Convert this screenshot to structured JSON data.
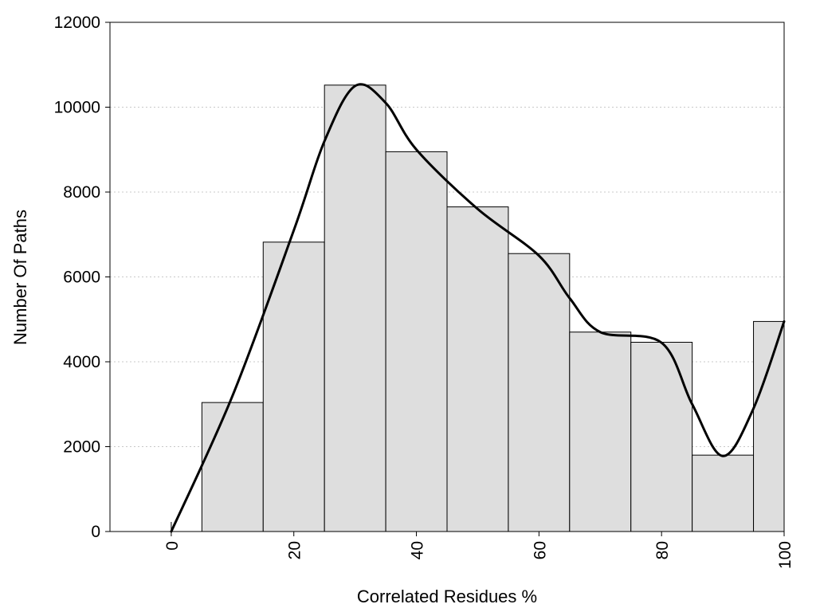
{
  "chart_data": {
    "type": "bar",
    "title": "",
    "xlabel": "Correlated Residues %",
    "ylabel": "Number Of Paths",
    "xlim": [
      -10,
      100
    ],
    "ylim": [
      0,
      12000
    ],
    "x_ticks": [
      0,
      20,
      40,
      60,
      80,
      100
    ],
    "y_ticks": [
      0,
      2000,
      4000,
      6000,
      8000,
      10000,
      12000
    ],
    "grid": "horizontal dotted",
    "bars": [
      {
        "x0": 5,
        "x1": 15,
        "value": 3040
      },
      {
        "x0": 15,
        "x1": 25,
        "value": 6820
      },
      {
        "x0": 25,
        "x1": 35,
        "value": 10520
      },
      {
        "x0": 35,
        "x1": 45,
        "value": 8950
      },
      {
        "x0": 45,
        "x1": 55,
        "value": 7650
      },
      {
        "x0": 55,
        "x1": 65,
        "value": 6550
      },
      {
        "x0": 65,
        "x1": 75,
        "value": 4700
      },
      {
        "x0": 75,
        "x1": 85,
        "value": 4460
      },
      {
        "x0": 85,
        "x1": 95,
        "value": 1800
      },
      {
        "x0": 95,
        "x1": 100,
        "value": 4950
      }
    ],
    "curve": {
      "x": [
        0,
        10,
        20,
        25,
        30,
        35,
        40,
        50,
        60,
        65,
        70,
        80,
        85,
        90,
        95,
        100
      ],
      "y": [
        0,
        3200,
        7100,
        9200,
        10500,
        10100,
        9000,
        7600,
        6500,
        5500,
        4700,
        4450,
        3000,
        1780,
        2900,
        4950
      ]
    },
    "colors": {
      "bar_fill": "#dedede",
      "bar_stroke": "#000000",
      "curve": "#000000"
    }
  }
}
